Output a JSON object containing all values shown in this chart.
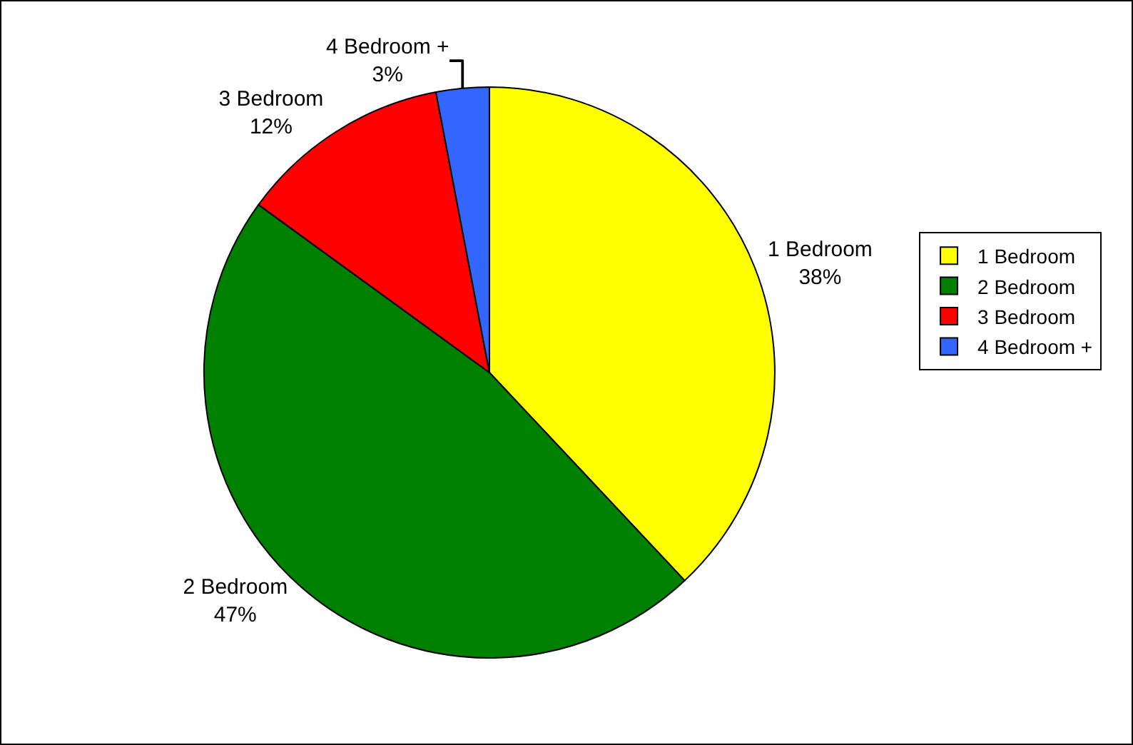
{
  "chart_data": {
    "type": "pie",
    "categories": [
      "1 Bedroom",
      "2 Bedroom",
      "3 Bedroom",
      "4 Bedroom +"
    ],
    "values": [
      38,
      47,
      12,
      3
    ],
    "value_labels": [
      "38%",
      "47%",
      "12%",
      "3%"
    ],
    "colors": [
      "#ffff00",
      "#008000",
      "#ff0000",
      "#3366ff"
    ],
    "legend": "right"
  }
}
